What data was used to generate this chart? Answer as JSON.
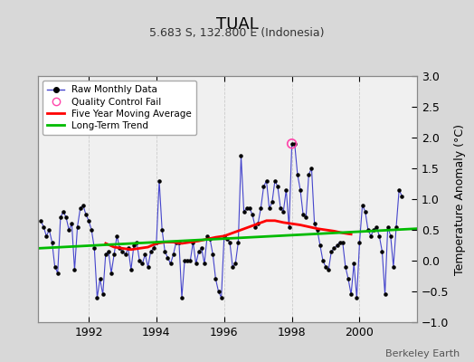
{
  "title": "TUAL",
  "subtitle": "5.683 S, 132.800 E (Indonesia)",
  "ylabel_right": "Temperature Anomaly (°C)",
  "credit": "Berkeley Earth",
  "xlim": [
    1990.5,
    2001.7
  ],
  "ylim": [
    -1.0,
    3.0
  ],
  "yticks": [
    -1,
    -0.5,
    0,
    0.5,
    1,
    1.5,
    2,
    2.5,
    3
  ],
  "xticks": [
    1992,
    1994,
    1996,
    1998,
    2000
  ],
  "bg_color": "#d8d8d8",
  "plot_bg_color": "#f0f0f0",
  "raw_color": "#4444cc",
  "dot_color": "#000000",
  "ma_color": "#ff0000",
  "trend_color": "#00bb00",
  "qc_color": "#ff44aa",
  "raw_monthly_x": [
    1990.583,
    1990.667,
    1990.75,
    1990.833,
    1990.917,
    1991.0,
    1991.083,
    1991.167,
    1991.25,
    1991.333,
    1991.417,
    1991.5,
    1991.583,
    1991.667,
    1991.75,
    1991.833,
    1991.917,
    1992.0,
    1992.083,
    1992.167,
    1992.25,
    1992.333,
    1992.417,
    1992.5,
    1992.583,
    1992.667,
    1992.75,
    1992.833,
    1992.917,
    1993.0,
    1993.083,
    1993.167,
    1993.25,
    1993.333,
    1993.417,
    1993.5,
    1993.583,
    1993.667,
    1993.75,
    1993.833,
    1993.917,
    1994.0,
    1994.083,
    1994.167,
    1994.25,
    1994.333,
    1994.417,
    1994.5,
    1994.583,
    1994.667,
    1994.75,
    1994.833,
    1994.917,
    1995.0,
    1995.083,
    1995.167,
    1995.25,
    1995.333,
    1995.417,
    1995.5,
    1995.583,
    1995.667,
    1995.75,
    1995.833,
    1995.917,
    1996.0,
    1996.083,
    1996.167,
    1996.25,
    1996.333,
    1996.417,
    1996.5,
    1996.583,
    1996.667,
    1996.75,
    1996.833,
    1996.917,
    1997.0,
    1997.083,
    1997.167,
    1997.25,
    1997.333,
    1997.417,
    1997.5,
    1997.583,
    1997.667,
    1997.75,
    1997.833,
    1997.917,
    1998.0,
    1998.083,
    1998.167,
    1998.25,
    1998.333,
    1998.417,
    1998.5,
    1998.583,
    1998.667,
    1998.75,
    1998.833,
    1998.917,
    1999.0,
    1999.083,
    1999.167,
    1999.25,
    1999.333,
    1999.417,
    1999.5,
    1999.583,
    1999.667,
    1999.75,
    1999.833,
    1999.917,
    2000.0,
    2000.083,
    2000.167,
    2000.25,
    2000.333,
    2000.417,
    2000.5,
    2000.583,
    2000.667,
    2000.75,
    2000.833,
    2000.917,
    2001.0,
    2001.083,
    2001.167,
    2001.25
  ],
  "raw_monthly_y": [
    0.65,
    0.55,
    0.4,
    0.5,
    0.3,
    -0.1,
    -0.2,
    0.7,
    0.8,
    0.7,
    0.5,
    0.6,
    -0.15,
    0.55,
    0.85,
    0.9,
    0.75,
    0.65,
    0.5,
    0.2,
    -0.6,
    -0.3,
    -0.55,
    0.1,
    0.15,
    -0.2,
    0.1,
    0.4,
    0.2,
    0.15,
    0.1,
    0.2,
    -0.15,
    0.25,
    0.3,
    0.0,
    -0.05,
    0.1,
    -0.1,
    0.15,
    0.2,
    0.3,
    1.3,
    0.5,
    0.15,
    0.05,
    -0.05,
    0.1,
    0.3,
    0.3,
    -0.6,
    0.0,
    0.0,
    0.0,
    0.3,
    -0.05,
    0.15,
    0.2,
    -0.05,
    0.4,
    0.35,
    0.1,
    -0.3,
    -0.5,
    -0.6,
    0.4,
    0.35,
    0.3,
    -0.1,
    -0.05,
    0.3,
    1.7,
    0.8,
    0.85,
    0.85,
    0.75,
    0.55,
    0.6,
    0.85,
    1.2,
    1.3,
    0.85,
    0.95,
    1.3,
    1.2,
    0.85,
    0.8,
    1.15,
    0.55,
    1.9,
    1.9,
    1.4,
    1.15,
    0.75,
    0.7,
    1.4,
    1.5,
    0.6,
    0.5,
    0.25,
    0.0,
    -0.1,
    -0.15,
    0.15,
    0.2,
    0.25,
    0.3,
    0.3,
    -0.1,
    -0.3,
    -0.55,
    -0.05,
    -0.6,
    0.3,
    0.9,
    0.8,
    0.5,
    0.4,
    0.5,
    0.55,
    0.4,
    0.15,
    -0.55,
    0.55,
    0.4,
    -0.1,
    0.55,
    1.15,
    1.05
  ],
  "qc_fail_x": [
    1998.0
  ],
  "qc_fail_y": [
    1.9
  ],
  "ma_x": [
    1992.5,
    1992.75,
    1993.0,
    1993.25,
    1993.5,
    1993.75,
    1994.0,
    1994.25,
    1994.5,
    1994.75,
    1995.0,
    1995.25,
    1995.5,
    1995.75,
    1996.0,
    1996.25,
    1996.5,
    1996.75,
    1997.0,
    1997.25,
    1997.5,
    1997.75,
    1998.0,
    1998.25,
    1998.5,
    1998.75,
    1999.0,
    1999.25,
    1999.5,
    1999.75
  ],
  "ma_y": [
    0.28,
    0.22,
    0.2,
    0.18,
    0.2,
    0.22,
    0.28,
    0.3,
    0.3,
    0.28,
    0.3,
    0.32,
    0.35,
    0.38,
    0.4,
    0.45,
    0.5,
    0.55,
    0.6,
    0.65,
    0.65,
    0.62,
    0.6,
    0.58,
    0.55,
    0.52,
    0.5,
    0.48,
    0.45,
    0.43
  ],
  "trend_x": [
    1990.5,
    2001.7
  ],
  "trend_y": [
    0.2,
    0.52
  ]
}
